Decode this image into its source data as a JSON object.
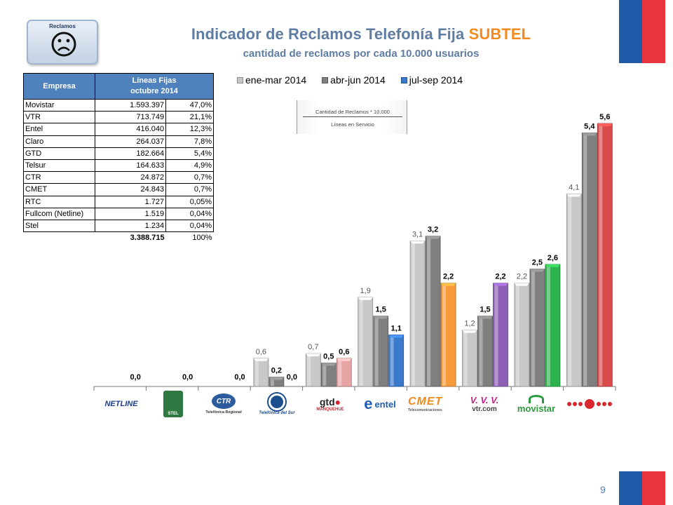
{
  "header": {
    "badge_label": "Reclamos",
    "title_main": "Indicador de Reclamos Telefonía Fija",
    "title_accent": "SUBTEL",
    "subtitle": "cantidad de reclamos por cada 10.000 usuarios"
  },
  "formula": {
    "numerator": "Cantidad de Reclamos * 10.000",
    "denominator": "Líneas en Servicio"
  },
  "table": {
    "col_empresa": "Empresa",
    "col_lineas_1": "Líneas Fijas",
    "col_lineas_2": "octubre 2014",
    "rows": [
      {
        "empresa": "Movistar",
        "lineas": "1.593.397",
        "pct": "47,0%"
      },
      {
        "empresa": "VTR",
        "lineas": "713.749",
        "pct": "21,1%"
      },
      {
        "empresa": "Entel",
        "lineas": "416.040",
        "pct": "12,3%"
      },
      {
        "empresa": "Claro",
        "lineas": "264.037",
        "pct": "7,8%"
      },
      {
        "empresa": "GTD",
        "lineas": "182.664",
        "pct": "5,4%"
      },
      {
        "empresa": "Telsur",
        "lineas": "164.633",
        "pct": "4,9%"
      },
      {
        "empresa": "CTR",
        "lineas": "24.872",
        "pct": "0,7%"
      },
      {
        "empresa": "CMET",
        "lineas": "24.843",
        "pct": "0,7%"
      },
      {
        "empresa": "RTC",
        "lineas": "1.727",
        "pct": "0,05%"
      },
      {
        "empresa": "Fullcom (Netline)",
        "lineas": "1.519",
        "pct": "0,04%"
      },
      {
        "empresa": "Stel",
        "lineas": "1.234",
        "pct": "0,04%"
      }
    ],
    "total_lineas": "3.388.715",
    "total_pct": "100%"
  },
  "logos": {
    "netline": "NETLINE",
    "stel": "STEL",
    "ctr": "CTR",
    "ctr_sub": "Telefónica Regional",
    "tds": "Telefónica del Sur",
    "gtd": "gtd",
    "gtd_sub": "MANQUEHUE",
    "entel_e": "e",
    "entel": "entel",
    "cmet": "CMET",
    "cmet_sub": "Telecomunicaciones",
    "vtr_mark": "V. V. V.",
    "vtr": "vtr.com",
    "movistar": "movistar"
  },
  "page_number": "9",
  "chart_data": {
    "type": "bar",
    "categories": [
      "Netline",
      "Stel",
      "CTR",
      "Telefónica del Sur",
      "GTD Manquehue",
      "Entel",
      "CMET",
      "VTR",
      "Movistar",
      "Claro"
    ],
    "series": [
      {
        "name": "ene-mar 2014",
        "color": "#c8c8c8",
        "values": [
          null,
          null,
          null,
          0.6,
          0.7,
          1.9,
          3.1,
          1.2,
          2.2,
          4.1
        ]
      },
      {
        "name": "abr-jun 2014",
        "color": "#7f7f7f",
        "values": [
          null,
          null,
          null,
          0.2,
          0.5,
          1.5,
          3.2,
          1.5,
          2.5,
          5.4
        ]
      },
      {
        "name": "jul-sep 2014",
        "color": "#3b79cc",
        "values": [
          0.0,
          0.0,
          0.0,
          0.0,
          0.6,
          1.1,
          2.2,
          2.2,
          2.6,
          5.6
        ]
      }
    ],
    "labels": [
      [
        null,
        null,
        null,
        "0,6",
        "0,7",
        "1,9",
        "3,1",
        "1,2",
        "2,2",
        "4,1"
      ],
      [
        null,
        null,
        null,
        "0,2",
        "0,5",
        "1,5",
        "3,2",
        "1,5",
        "2,5",
        "5,4"
      ],
      [
        "0,0",
        "0,0",
        "0,0",
        "0,0",
        "0,6",
        "1,1",
        "2,2",
        "2,2",
        "2,6",
        "5,6"
      ]
    ],
    "q3_colors": [
      "#3b79cc",
      "#3b79cc",
      "#3b79cc",
      "#3b79cc",
      "#e6a4a4",
      "#3b79cc",
      "#f79a3a",
      "#8e5fb6",
      "#2fb34f",
      "#d94b4b"
    ],
    "legend_position": "top",
    "grid": false,
    "ylim": [
      0,
      5.6
    ]
  }
}
